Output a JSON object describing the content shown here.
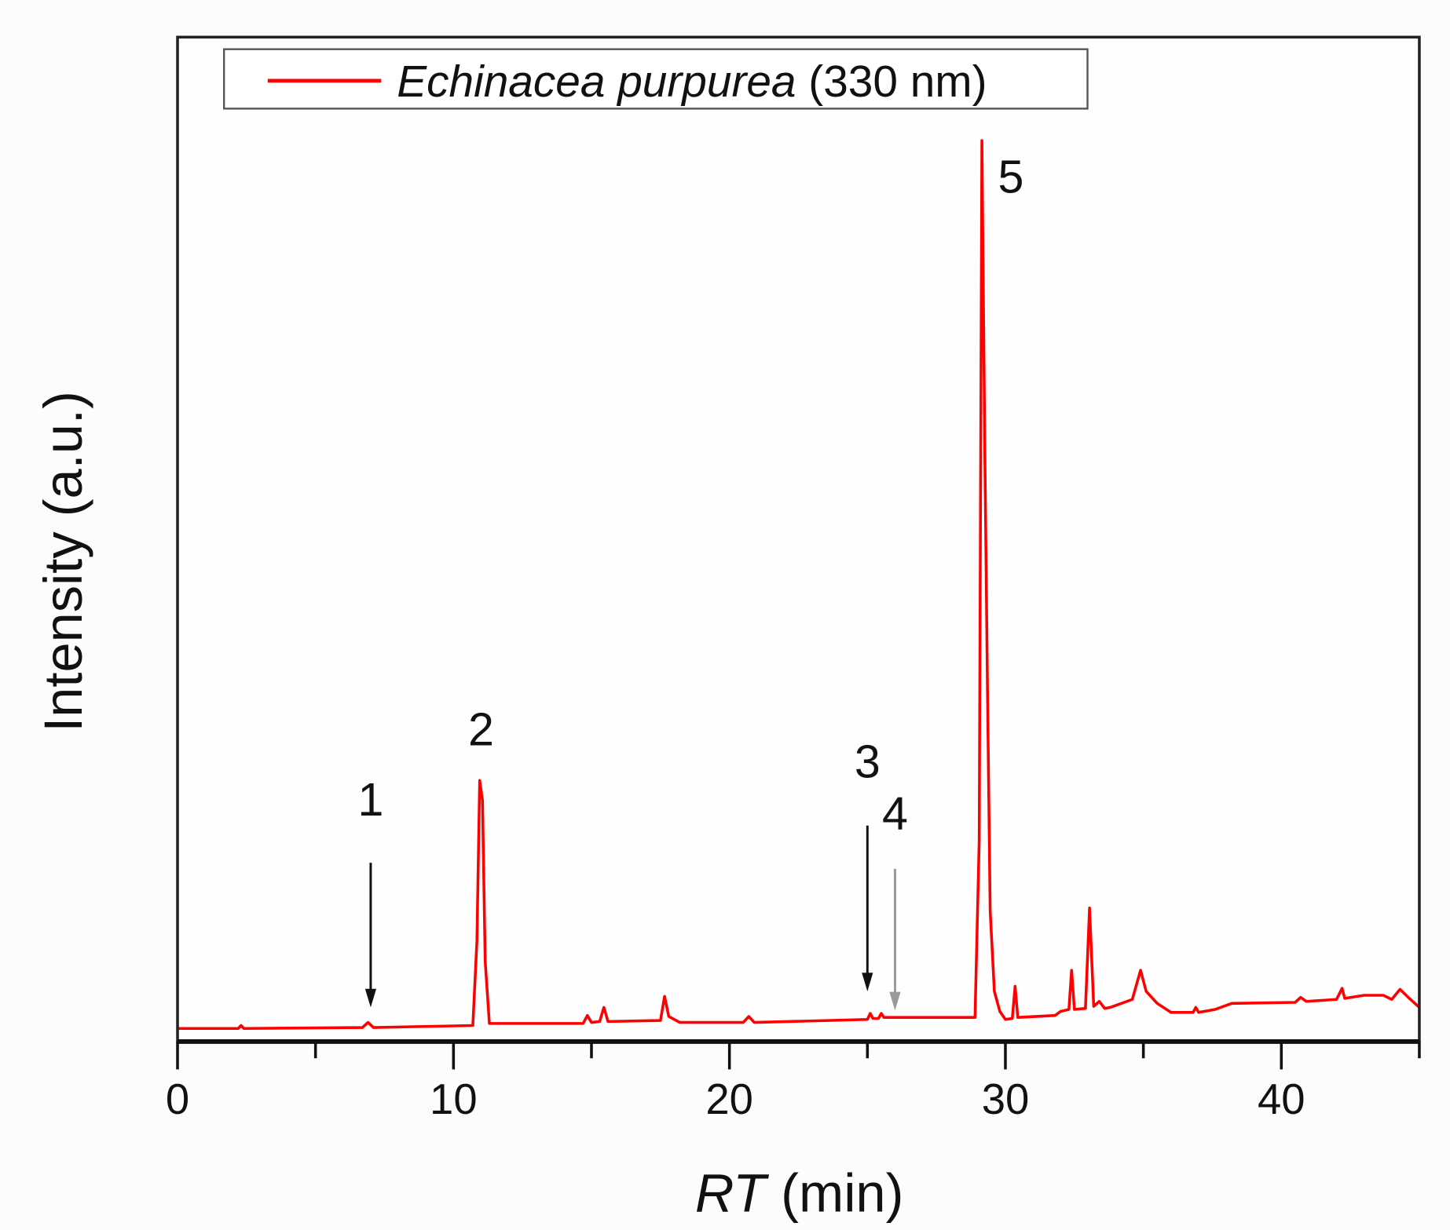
{
  "chart_data": {
    "type": "line",
    "title": "",
    "xlabel": {
      "italic": "RT",
      "rest": " (min)"
    },
    "ylabel": "Intensity (a.u.)",
    "xlim": [
      0,
      45
    ],
    "ylim": [
      0,
      100
    ],
    "xticks_major": [
      0,
      10,
      20,
      30,
      40
    ],
    "xtick_labels": [
      "0",
      "10",
      "20",
      "30",
      "40"
    ],
    "xticks_minor": [
      5,
      15,
      25,
      35,
      45
    ],
    "grid": false,
    "legend": {
      "placement": "top-left",
      "entries": [
        {
          "italic": "Echinacea purpurea",
          "rest": " (330 nm)",
          "color": "#ff0000"
        }
      ]
    },
    "series": [
      {
        "name": "Echinacea purpurea (330 nm)",
        "color": "#ff0000",
        "x": [
          0,
          2.2,
          2.3,
          2.4,
          6.7,
          6.9,
          7.1,
          10.7,
          10.85,
          10.95,
          11.05,
          11.15,
          11.3,
          14.7,
          14.85,
          15.0,
          15.3,
          15.45,
          15.6,
          17.5,
          17.65,
          17.8,
          18.2,
          20.5,
          20.7,
          20.9,
          25.0,
          25.1,
          25.2,
          25.4,
          25.5,
          25.6,
          28.9,
          29.05,
          29.15,
          29.25,
          29.35,
          29.45,
          29.6,
          29.8,
          30.0,
          30.25,
          30.35,
          30.45,
          31.8,
          32.0,
          32.3,
          32.4,
          32.5,
          32.9,
          33.05,
          33.2,
          33.4,
          33.6,
          33.8,
          34.6,
          34.9,
          35.1,
          35.5,
          36.0,
          36.8,
          36.9,
          37.0,
          37.6,
          38.2,
          40.5,
          40.7,
          40.9,
          42.0,
          42.2,
          42.3,
          43.0,
          43.7,
          44.0,
          44.3,
          44.6,
          45
        ],
        "y": [
          1.3,
          1.3,
          1.6,
          1.3,
          1.4,
          1.9,
          1.4,
          1.6,
          10,
          26,
          24,
          8,
          1.8,
          1.8,
          2.6,
          1.9,
          2.0,
          3.4,
          2.0,
          2.1,
          4.5,
          2.5,
          1.9,
          1.9,
          2.5,
          1.9,
          2.2,
          2.8,
          2.3,
          2.3,
          2.8,
          2.4,
          2.4,
          20,
          89.7,
          60,
          35,
          13,
          5,
          3,
          2.2,
          2.3,
          5.5,
          2.4,
          2.6,
          3.0,
          3.2,
          7.1,
          3.2,
          3.3,
          13.3,
          3.5,
          4.0,
          3.3,
          3.4,
          4.2,
          7.1,
          5.0,
          3.8,
          2.9,
          2.9,
          3.4,
          2.9,
          3.2,
          3.8,
          3.9,
          4.4,
          4.0,
          4.2,
          5.3,
          4.3,
          4.6,
          4.6,
          4.2,
          5.2,
          4.4,
          3.4
        ]
      }
    ],
    "annotations": [
      {
        "label": "1",
        "x": 7.0,
        "arrow": true,
        "arrow_color": "#111111",
        "label_y": 22.5,
        "arrow_from": 17.8,
        "arrow_to": 3.4
      },
      {
        "label": "2",
        "x": 11.0,
        "arrow": false,
        "label_y": 29.5
      },
      {
        "label": "3",
        "x": 25.0,
        "arrow": true,
        "arrow_color": "#111111",
        "label_y": 26.3,
        "arrow_from": 21.5,
        "arrow_to": 5.0
      },
      {
        "label": "4",
        "x": 26.0,
        "arrow": true,
        "arrow_color": "#999999",
        "label_y": 21.1,
        "arrow_from": 17.2,
        "arrow_to": 3.1
      },
      {
        "label": "5",
        "x": 30.2,
        "arrow": false,
        "label_y": 84.5
      }
    ]
  }
}
